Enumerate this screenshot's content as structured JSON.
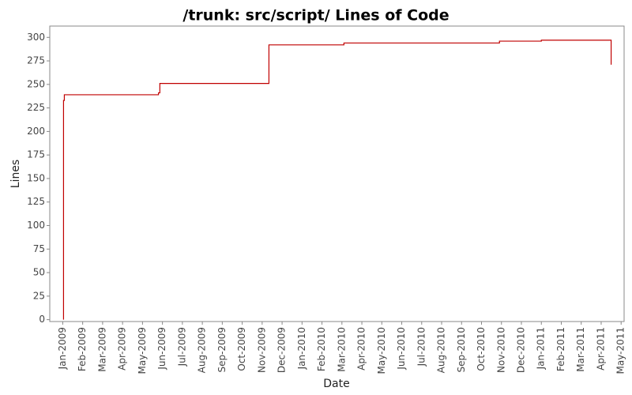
{
  "chart_data": {
    "type": "step-line",
    "title": "/trunk: src/script/ Lines of Code",
    "x_label": "Date",
    "y_label": "Lines",
    "series": [
      {
        "name": "Lines",
        "color": "#c00000",
        "x": [
          0.04,
          0.04,
          0.08,
          4.8,
          4.87,
          10.34,
          14.1,
          21.9,
          24.0,
          27.5
        ],
        "values": [
          0,
          233,
          239,
          241,
          251,
          292,
          294,
          296,
          297,
          271
        ]
      }
    ],
    "xlim": [
      -0.65,
      28.15
    ],
    "ylim": [
      -2,
      312
    ],
    "xticks": [
      {
        "value": 0,
        "label": "Jan-2009"
      },
      {
        "value": 1,
        "label": "Feb-2009"
      },
      {
        "value": 2,
        "label": "Mar-2009"
      },
      {
        "value": 3,
        "label": "Apr-2009"
      },
      {
        "value": 4,
        "label": "May-2009"
      },
      {
        "value": 5,
        "label": "Jun-2009"
      },
      {
        "value": 6,
        "label": "Jul-2009"
      },
      {
        "value": 7,
        "label": "Aug-2009"
      },
      {
        "value": 8,
        "label": "Sep-2009"
      },
      {
        "value": 9,
        "label": "Oct-2009"
      },
      {
        "value": 10,
        "label": "Nov-2009"
      },
      {
        "value": 11,
        "label": "Dec-2009"
      },
      {
        "value": 12,
        "label": "Jan-2010"
      },
      {
        "value": 13,
        "label": "Feb-2010"
      },
      {
        "value": 14,
        "label": "Mar-2010"
      },
      {
        "value": 15,
        "label": "Apr-2010"
      },
      {
        "value": 16,
        "label": "May-2010"
      },
      {
        "value": 17,
        "label": "Jun-2010"
      },
      {
        "value": 18,
        "label": "Jul-2010"
      },
      {
        "value": 19,
        "label": "Aug-2010"
      },
      {
        "value": 20,
        "label": "Sep-2010"
      },
      {
        "value": 21,
        "label": "Oct-2010"
      },
      {
        "value": 22,
        "label": "Nov-2010"
      },
      {
        "value": 23,
        "label": "Dec-2010"
      },
      {
        "value": 24,
        "label": "Jan-2011"
      },
      {
        "value": 25,
        "label": "Feb-2011"
      },
      {
        "value": 26,
        "label": "Mar-2011"
      },
      {
        "value": 27,
        "label": "Apr-2011"
      },
      {
        "value": 28,
        "label": "May-2011"
      }
    ],
    "yticks": [
      0,
      25,
      50,
      75,
      100,
      125,
      150,
      175,
      200,
      225,
      250,
      275,
      300
    ],
    "grid": false
  }
}
